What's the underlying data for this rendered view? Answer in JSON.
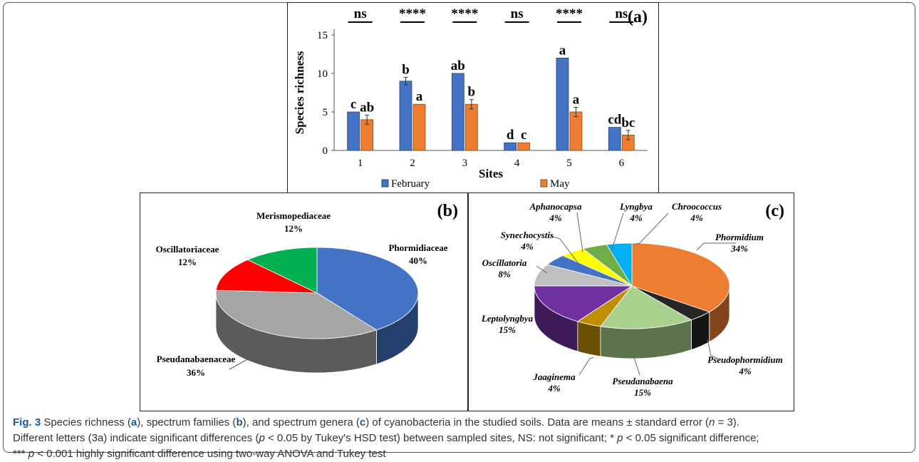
{
  "chart_data": [
    {
      "type": "bar",
      "panel_label": "(a)",
      "ylabel": "Species richness",
      "xlabel": "Sites",
      "categories": [
        "1",
        "2",
        "3",
        "4",
        "5",
        "6"
      ],
      "ylim": [
        0,
        15
      ],
      "yticks": [
        0,
        5,
        10,
        15
      ],
      "grid": false,
      "legend_position": "bottom",
      "series": [
        {
          "name": "February",
          "color": "#4472C4",
          "values": [
            5,
            9,
            10,
            1,
            12,
            3
          ],
          "errors": [
            0,
            0.5,
            0,
            0,
            0,
            0
          ],
          "letters": [
            "c",
            "b",
            "ab",
            "d",
            "a",
            "cd"
          ]
        },
        {
          "name": "May",
          "color": "#ED7D31",
          "values": [
            4,
            6,
            6,
            1,
            5,
            2
          ],
          "errors": [
            0.6,
            0,
            0.6,
            0,
            0.6,
            0.6
          ],
          "letters": [
            "ab",
            "a",
            "b",
            "c",
            "a",
            "bc"
          ]
        }
      ],
      "significance": [
        "ns",
        "****",
        "****",
        "ns",
        "****",
        "ns"
      ]
    },
    {
      "type": "pie",
      "panel_label": "(b)",
      "slices": [
        {
          "label": "Phormidiaceae",
          "value": 40,
          "pct_label": "40%",
          "color": "#4472C4"
        },
        {
          "label": "Pseudanabaenaceae",
          "value": 36,
          "pct_label": "36%",
          "color": "#A5A5A5"
        },
        {
          "label": "Oscillatoriaceae",
          "value": 12,
          "pct_label": "12%",
          "color": "#FF0000"
        },
        {
          "label": "Merismopediaceae",
          "value": 12,
          "pct_label": "12%",
          "color": "#00B050"
        }
      ]
    },
    {
      "type": "pie",
      "panel_label": "(c)",
      "slices": [
        {
          "label": "Phormidium",
          "value": 34,
          "pct_label": "34%",
          "color": "#ED7D31"
        },
        {
          "label": "Pseudophormidium",
          "value": 4,
          "pct_label": "4%",
          "color": "#262626"
        },
        {
          "label": "Pseudanabaena",
          "value": 15,
          "pct_label": "15%",
          "color": "#A9D18E"
        },
        {
          "label": "Jaaginema",
          "value": 4,
          "pct_label": "4%",
          "color": "#BF8F00"
        },
        {
          "label": "Leptolyngbya",
          "value": 15,
          "pct_label": "15%",
          "color": "#7030A0"
        },
        {
          "label": "Oscillatoria",
          "value": 8,
          "pct_label": "8%",
          "color": "#BFBFBF"
        },
        {
          "label": "Synechocystis",
          "value": 4,
          "pct_label": "4%",
          "color": "#4472C4"
        },
        {
          "label": "Aphanocapsa",
          "value": 4,
          "pct_label": "4%",
          "color": "#FFFF00"
        },
        {
          "label": "Lyngbya",
          "value": 4,
          "pct_label": "4%",
          "color": "#70AD47"
        },
        {
          "label": "Chroococcus",
          "value": 4,
          "pct_label": "4%",
          "color": "#00B0F0"
        }
      ]
    }
  ],
  "caption": {
    "fig": "Fig. 3",
    "t1": " Species richness (",
    "a": "a",
    "t2": "), spectrum families (",
    "b": "b",
    "t3": "), and spectrum genera (",
    "c": "c",
    "t4": ") of cyanobacteria in the studied soils. Data are means ± standard error (",
    "n": "n",
    "t5": " = 3).",
    "line2a": "Different letters (3a) indicate significant differences (",
    "p1": "p",
    "line2b": " < 0.05 by Tukey's HSD test) between sampled sites, NS: not significant; * ",
    "p2": "p",
    "line2c": " < 0.05 significant difference;",
    "line3a": "*** ",
    "p3": "p",
    "line3b": " < 0.001 highly significant difference using two-way ANOVA and Tukey test"
  }
}
